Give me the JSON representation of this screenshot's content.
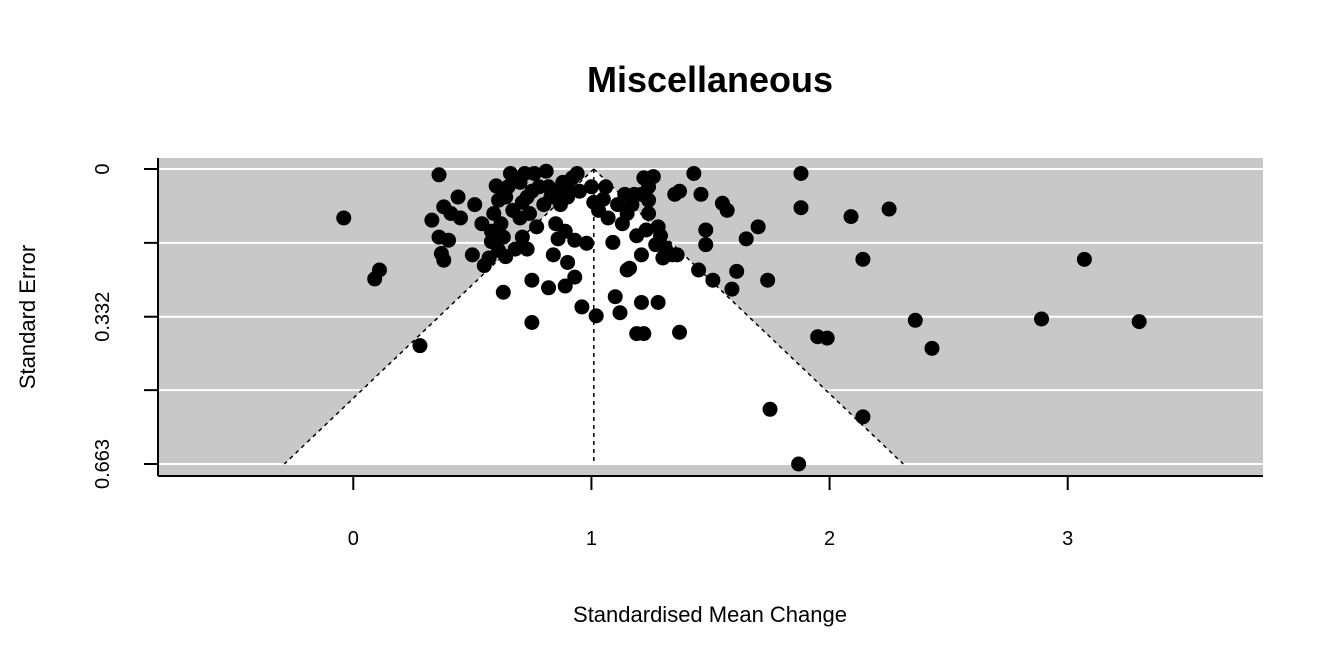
{
  "chart_data": {
    "type": "scatter",
    "subtype": "funnel-plot",
    "title": "Miscellaneous",
    "xlabel": "Standardised Mean Change",
    "ylabel": "Standard Error",
    "xlim": [
      -0.82,
      3.82
    ],
    "ylim": [
      0,
      0.663
    ],
    "y_reversed": true,
    "x_ticks": [
      0,
      1,
      2,
      3
    ],
    "x_tick_labels": [
      "0",
      "1",
      "2",
      "3"
    ],
    "y_ticks": [
      0,
      0.332,
      0.663
    ],
    "y_tick_labels": [
      "0",
      "0.332",
      "0.663"
    ],
    "y_gridlines": [
      0,
      0.166,
      0.332,
      0.497,
      0.663
    ],
    "summary_estimate": 1.01,
    "funnel_multiplier": 1.96,
    "colors": {
      "panel": "#c8c8c8",
      "funnel": "#ffffff",
      "grid": "#ffffff",
      "points": "#000000"
    },
    "points": [
      {
        "x": -0.04,
        "y": 0.11
      },
      {
        "x": 0.09,
        "y": 0.247
      },
      {
        "x": 0.11,
        "y": 0.227
      },
      {
        "x": 0.28,
        "y": 0.397
      },
      {
        "x": 0.33,
        "y": 0.115
      },
      {
        "x": 0.36,
        "y": 0.013
      },
      {
        "x": 0.36,
        "y": 0.153
      },
      {
        "x": 0.37,
        "y": 0.19
      },
      {
        "x": 0.38,
        "y": 0.085
      },
      {
        "x": 0.38,
        "y": 0.205
      },
      {
        "x": 0.4,
        "y": 0.16
      },
      {
        "x": 0.41,
        "y": 0.1
      },
      {
        "x": 0.44,
        "y": 0.063
      },
      {
        "x": 0.45,
        "y": 0.11
      },
      {
        "x": 0.5,
        "y": 0.193
      },
      {
        "x": 0.51,
        "y": 0.08
      },
      {
        "x": 0.54,
        "y": 0.123
      },
      {
        "x": 0.55,
        "y": 0.217
      },
      {
        "x": 0.57,
        "y": 0.2
      },
      {
        "x": 0.58,
        "y": 0.14
      },
      {
        "x": 0.58,
        "y": 0.163
      },
      {
        "x": 0.59,
        "y": 0.1
      },
      {
        "x": 0.6,
        "y": 0.038
      },
      {
        "x": 0.61,
        "y": 0.07
      },
      {
        "x": 0.61,
        "y": 0.183
      },
      {
        "x": 0.62,
        "y": 0.123
      },
      {
        "x": 0.63,
        "y": 0.153
      },
      {
        "x": 0.63,
        "y": 0.277
      },
      {
        "x": 0.64,
        "y": 0.063
      },
      {
        "x": 0.64,
        "y": 0.197
      },
      {
        "x": 0.65,
        "y": 0.04
      },
      {
        "x": 0.66,
        "y": 0.01
      },
      {
        "x": 0.67,
        "y": 0.093
      },
      {
        "x": 0.68,
        "y": 0.18
      },
      {
        "x": 0.7,
        "y": 0.03
      },
      {
        "x": 0.7,
        "y": 0.11
      },
      {
        "x": 0.71,
        "y": 0.075
      },
      {
        "x": 0.71,
        "y": 0.153
      },
      {
        "x": 0.72,
        "y": 0.01
      },
      {
        "x": 0.73,
        "y": 0.063
      },
      {
        "x": 0.73,
        "y": 0.18
      },
      {
        "x": 0.74,
        "y": 0.1
      },
      {
        "x": 0.75,
        "y": 0.05
      },
      {
        "x": 0.75,
        "y": 0.25
      },
      {
        "x": 0.75,
        "y": 0.345
      },
      {
        "x": 0.76,
        "y": 0.01
      },
      {
        "x": 0.77,
        "y": 0.13
      },
      {
        "x": 0.78,
        "y": 0.04
      },
      {
        "x": 0.8,
        "y": 0.08
      },
      {
        "x": 0.81,
        "y": 0.005
      },
      {
        "x": 0.82,
        "y": 0.04
      },
      {
        "x": 0.82,
        "y": 0.267
      },
      {
        "x": 0.83,
        "y": 0.063
      },
      {
        "x": 0.84,
        "y": 0.193
      },
      {
        "x": 0.85,
        "y": 0.123
      },
      {
        "x": 0.86,
        "y": 0.05
      },
      {
        "x": 0.86,
        "y": 0.157
      },
      {
        "x": 0.87,
        "y": 0.08
      },
      {
        "x": 0.88,
        "y": 0.03
      },
      {
        "x": 0.89,
        "y": 0.14
      },
      {
        "x": 0.89,
        "y": 0.263
      },
      {
        "x": 0.9,
        "y": 0.063
      },
      {
        "x": 0.9,
        "y": 0.21
      },
      {
        "x": 0.91,
        "y": 0.05
      },
      {
        "x": 0.92,
        "y": 0.02
      },
      {
        "x": 0.93,
        "y": 0.16
      },
      {
        "x": 0.93,
        "y": 0.243
      },
      {
        "x": 0.94,
        "y": 0.01
      },
      {
        "x": 0.95,
        "y": 0.05
      },
      {
        "x": 0.96,
        "y": 0.31
      },
      {
        "x": 0.98,
        "y": 0.167
      },
      {
        "x": 1.0,
        "y": 0.04
      },
      {
        "x": 1.01,
        "y": 0.075
      },
      {
        "x": 1.02,
        "y": 0.33
      },
      {
        "x": 1.03,
        "y": 0.093
      },
      {
        "x": 1.05,
        "y": 0.068
      },
      {
        "x": 1.06,
        "y": 0.04
      },
      {
        "x": 1.07,
        "y": 0.11
      },
      {
        "x": 1.09,
        "y": 0.165
      },
      {
        "x": 1.1,
        "y": 0.287
      },
      {
        "x": 1.11,
        "y": 0.08
      },
      {
        "x": 1.12,
        "y": 0.323
      },
      {
        "x": 1.13,
        "y": 0.123
      },
      {
        "x": 1.14,
        "y": 0.057
      },
      {
        "x": 1.15,
        "y": 0.1
      },
      {
        "x": 1.15,
        "y": 0.227
      },
      {
        "x": 1.16,
        "y": 0.223
      },
      {
        "x": 1.17,
        "y": 0.08
      },
      {
        "x": 1.18,
        "y": 0.057
      },
      {
        "x": 1.19,
        "y": 0.15
      },
      {
        "x": 1.19,
        "y": 0.37
      },
      {
        "x": 1.21,
        "y": 0.057
      },
      {
        "x": 1.21,
        "y": 0.193
      },
      {
        "x": 1.21,
        "y": 0.3
      },
      {
        "x": 1.22,
        "y": 0.02
      },
      {
        "x": 1.22,
        "y": 0.37
      },
      {
        "x": 1.23,
        "y": 0.137
      },
      {
        "x": 1.24,
        "y": 0.04
      },
      {
        "x": 1.24,
        "y": 0.07
      },
      {
        "x": 1.24,
        "y": 0.1
      },
      {
        "x": 1.26,
        "y": 0.017
      },
      {
        "x": 1.27,
        "y": 0.17
      },
      {
        "x": 1.28,
        "y": 0.13
      },
      {
        "x": 1.28,
        "y": 0.3
      },
      {
        "x": 1.29,
        "y": 0.15
      },
      {
        "x": 1.3,
        "y": 0.2
      },
      {
        "x": 1.31,
        "y": 0.177
      },
      {
        "x": 1.34,
        "y": 0.193
      },
      {
        "x": 1.35,
        "y": 0.057
      },
      {
        "x": 1.36,
        "y": 0.193
      },
      {
        "x": 1.37,
        "y": 0.05
      },
      {
        "x": 1.37,
        "y": 0.367
      },
      {
        "x": 1.43,
        "y": 0.01
      },
      {
        "x": 1.45,
        "y": 0.227
      },
      {
        "x": 1.46,
        "y": 0.057
      },
      {
        "x": 1.48,
        "y": 0.137
      },
      {
        "x": 1.48,
        "y": 0.17
      },
      {
        "x": 1.51,
        "y": 0.25
      },
      {
        "x": 1.55,
        "y": 0.077
      },
      {
        "x": 1.57,
        "y": 0.093
      },
      {
        "x": 1.59,
        "y": 0.27
      },
      {
        "x": 1.61,
        "y": 0.23
      },
      {
        "x": 1.65,
        "y": 0.157
      },
      {
        "x": 1.7,
        "y": 0.13
      },
      {
        "x": 1.74,
        "y": 0.25
      },
      {
        "x": 1.75,
        "y": 0.54
      },
      {
        "x": 1.87,
        "y": 0.663
      },
      {
        "x": 1.88,
        "y": 0.01
      },
      {
        "x": 1.88,
        "y": 0.087
      },
      {
        "x": 1.95,
        "y": 0.377
      },
      {
        "x": 1.99,
        "y": 0.38
      },
      {
        "x": 2.09,
        "y": 0.107
      },
      {
        "x": 2.14,
        "y": 0.203
      },
      {
        "x": 2.14,
        "y": 0.557
      },
      {
        "x": 2.25,
        "y": 0.09
      },
      {
        "x": 2.36,
        "y": 0.34
      },
      {
        "x": 2.43,
        "y": 0.403
      },
      {
        "x": 2.89,
        "y": 0.337
      },
      {
        "x": 3.07,
        "y": 0.203
      },
      {
        "x": 3.3,
        "y": 0.343
      }
    ]
  }
}
